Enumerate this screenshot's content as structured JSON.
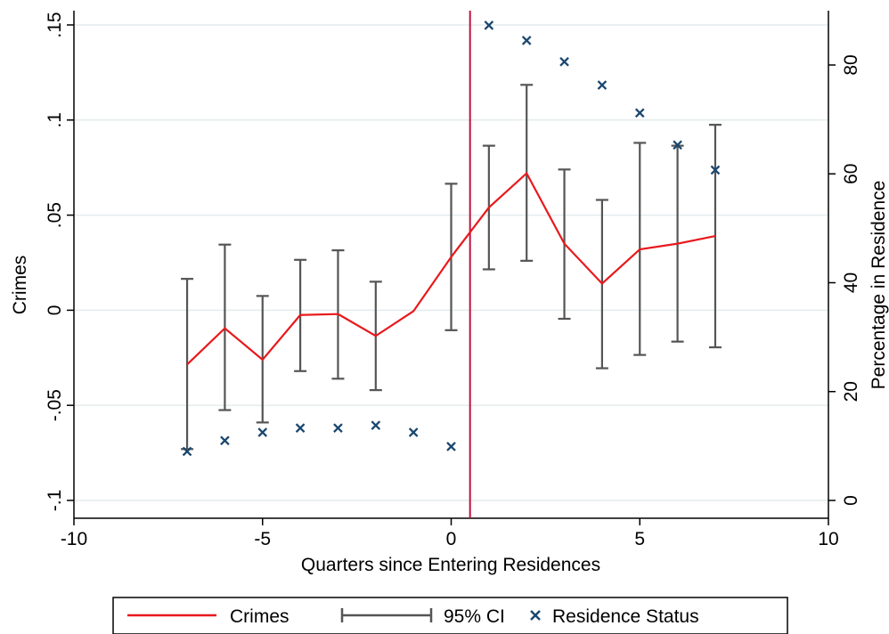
{
  "chart_data": {
    "type": "line",
    "xlabel": "Quarters since Entering Residences",
    "ylabel_left": "Crimes",
    "ylabel_right": "Percentage in Residence",
    "xlim": [
      -10,
      10
    ],
    "ylim_left": [
      -0.1,
      0.15
    ],
    "ylim_right": [
      0,
      88
    ],
    "x_ticks": [
      -10,
      -5,
      0,
      5,
      10
    ],
    "x_tick_labels": [
      "-10",
      "-5",
      "0",
      "5",
      "10"
    ],
    "y_left_ticks": [
      -0.1,
      -0.05,
      0,
      0.05,
      0.1,
      0.15
    ],
    "y_left_tick_labels": [
      "-.1",
      "-.05",
      "0",
      ".05",
      ".1",
      ".15"
    ],
    "y_right_ticks": [
      0,
      20,
      40,
      60,
      80
    ],
    "y_right_tick_labels": [
      "0",
      "20",
      "40",
      "60",
      "80"
    ],
    "grid": true,
    "vertical_line_x": 0.5,
    "legend_position": "bottom",
    "crimes": {
      "name": "Crimes",
      "x": [
        -7,
        -6,
        -5,
        -4,
        -3,
        -2,
        -1,
        0,
        1,
        2,
        3,
        4,
        5,
        6,
        7
      ],
      "y": [
        -0.0285,
        -0.0095,
        -0.026,
        -0.0025,
        -0.002,
        -0.0135,
        -0.0005,
        0.028,
        0.054,
        0.072,
        0.035,
        0.014,
        0.032,
        0.035,
        0.039
      ]
    },
    "ci": {
      "name": "95% CI",
      "x": [
        -7,
        -6,
        -5,
        -4,
        -3,
        -2,
        -1,
        0,
        1,
        2,
        3,
        4,
        5,
        6,
        7
      ],
      "low": [
        -0.073,
        -0.0525,
        -0.059,
        -0.032,
        -0.036,
        -0.042,
        null,
        -0.0105,
        0.0215,
        0.026,
        -0.0045,
        -0.0305,
        -0.0235,
        -0.0165,
        -0.0195
      ],
      "high": [
        0.0165,
        0.0345,
        0.0075,
        0.0265,
        0.0315,
        0.015,
        null,
        0.0665,
        0.0865,
        0.1185,
        0.074,
        0.058,
        0.088,
        0.0865,
        0.0975
      ]
    },
    "residence": {
      "name": "Residence Status",
      "x": [
        -7,
        -6,
        -5,
        -4,
        -3,
        -2,
        -1,
        0,
        1,
        2,
        3,
        4,
        5,
        6,
        7
      ],
      "y": [
        9,
        11,
        12.5,
        13.3,
        13.3,
        13.8,
        12.5,
        9.9,
        87.3,
        84.5,
        80.6,
        76.3,
        71.2,
        65.3,
        60.7
      ]
    },
    "colors": {
      "crimes": "#e8191c",
      "ci": "#555555",
      "residence": "#1a476f",
      "vline": "#c0143c",
      "grid": "#e4ecee"
    }
  },
  "legend": {
    "crimes_label": "Crimes",
    "ci_label": "95% CI",
    "residence_label": "Residence Status"
  }
}
